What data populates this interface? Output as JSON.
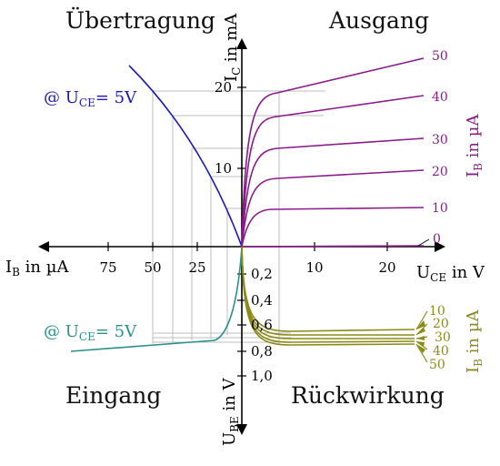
{
  "quadrants": {
    "top_left": "Übertragung",
    "top_right": "Ausgang",
    "bottom_left": "Eingang",
    "bottom_right": "Rückwirkung"
  },
  "axes": {
    "ic": {
      "base": "I",
      "sub": "C",
      "rest": " in mA",
      "ticks": [
        "10",
        "20"
      ]
    },
    "ib_left": {
      "base": "I",
      "sub": "B",
      "rest": " in µA",
      "ticks": [
        "75",
        "50",
        "25"
      ]
    },
    "uce": {
      "base": "U",
      "sub": "CE",
      "rest": " in V",
      "ticks": [
        "10",
        "20"
      ]
    },
    "ube": {
      "base": "U",
      "sub": "BE",
      "rest": " in V",
      "ticks": [
        "0,2",
        "0,4",
        "0,6",
        "0,8",
        "1,0"
      ]
    }
  },
  "conditions": {
    "transfer": {
      "prefix": "@ ",
      "base": "U",
      "sub": "CE",
      "rest": "= 5V"
    },
    "input": {
      "prefix": "@ ",
      "base": "U",
      "sub": "CE",
      "rest": "= 5V"
    }
  },
  "output_family": {
    "param": {
      "base": "I",
      "sub": "B",
      "rest": " in µA"
    },
    "curves": [
      "0",
      "10",
      "20",
      "30",
      "40",
      "50"
    ]
  },
  "feedback_family": {
    "param": {
      "base": "I",
      "sub": "B",
      "rest": " in µA"
    },
    "curves": [
      "10",
      "20",
      "30",
      "40",
      "50"
    ]
  },
  "colors": {
    "axis": "#000000",
    "transfer": "#1a1ab8",
    "output": "#8b1a8b",
    "input": "#2a8f8f",
    "feedback": "#8b8b1a",
    "guide": "#bdbdbd"
  }
}
